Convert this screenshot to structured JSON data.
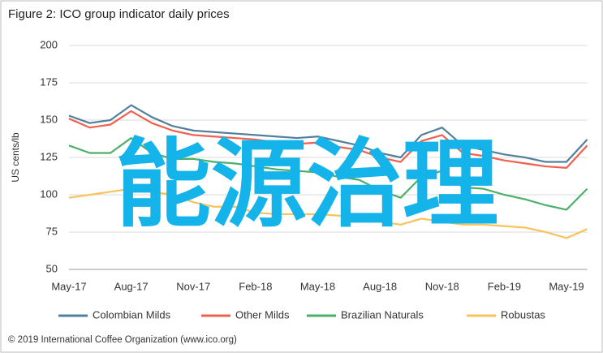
{
  "chart_data": {
    "type": "line",
    "title": "Figure 2: ICO group indicator daily prices",
    "y_label": "US cents/lb",
    "categories": [
      "May-17",
      null,
      null,
      "Aug-17",
      null,
      null,
      "Nov-17",
      null,
      null,
      "Feb-18",
      null,
      null,
      "May-18",
      null,
      null,
      "Aug-18",
      null,
      null,
      "Nov-18",
      null,
      null,
      "Feb-19",
      null,
      null,
      "May-19",
      null
    ],
    "series": [
      {
        "name": "Colombian Milds",
        "color": "#52809c",
        "values": [
          153,
          148,
          150,
          160,
          152,
          146,
          143,
          142,
          141,
          140,
          139,
          138,
          139,
          136,
          133,
          128,
          125,
          140,
          145,
          133,
          130,
          127,
          125,
          122,
          122,
          137
        ]
      },
      {
        "name": "Other Milds",
        "color": "#f0604f",
        "values": [
          151,
          145,
          147,
          156,
          148,
          143,
          140,
          139,
          138,
          137,
          135,
          134,
          135,
          132,
          130,
          125,
          122,
          136,
          140,
          128,
          126,
          123,
          121,
          119,
          118,
          133
        ]
      },
      {
        "name": "Brazilian Naturals",
        "color": "#4caf6a",
        "values": [
          133,
          128,
          128,
          138,
          128,
          124,
          124,
          122,
          121,
          119,
          117,
          116,
          115,
          112,
          110,
          103,
          98,
          112,
          116,
          105,
          104,
          100,
          97,
          93,
          90,
          104
        ]
      },
      {
        "name": "Robustas",
        "color": "#f9c25d",
        "values": [
          98,
          100,
          102,
          104,
          102,
          100,
          95,
          92,
          92,
          88,
          87,
          87,
          87,
          86,
          85,
          82,
          80,
          84,
          82,
          80,
          80,
          79,
          78,
          75,
          71,
          77
        ]
      }
    ],
    "ylim": [
      50,
      200
    ],
    "yticks": [
      50,
      75,
      100,
      125,
      150,
      175,
      200
    ],
    "grid": true,
    "legend": "bottom"
  },
  "source": "© 2019 International Coffee Organization (www.ico.org)",
  "overlay_text": "能源治理"
}
